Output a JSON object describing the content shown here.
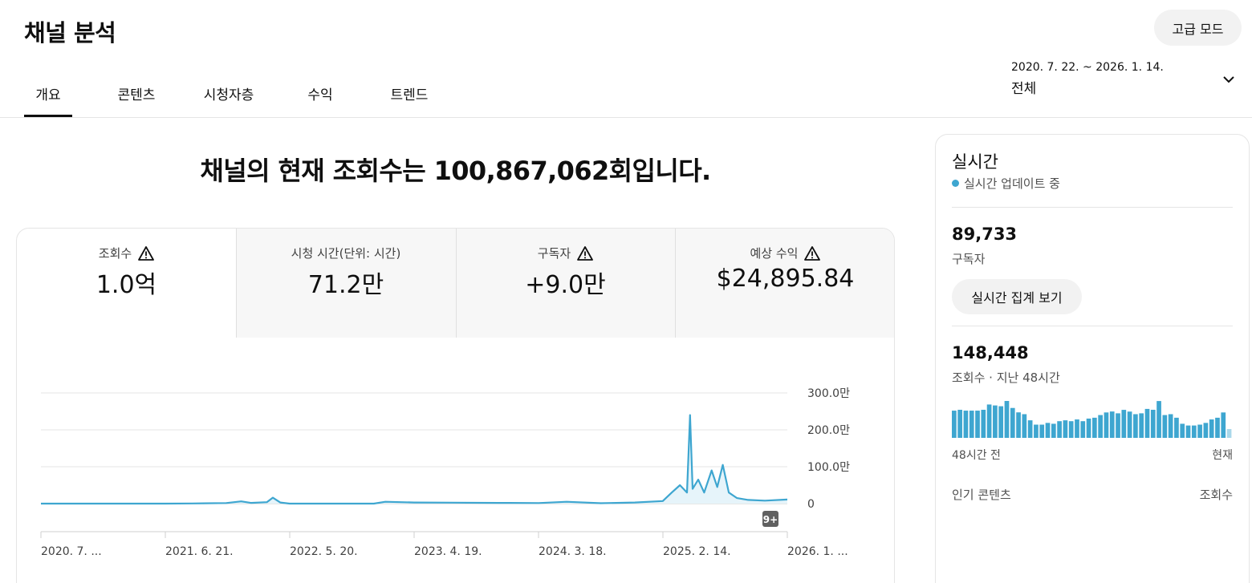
{
  "header": {
    "title": "채널 분석",
    "advanced_mode_label": "고급 모드"
  },
  "tabs": [
    {
      "label": "개요",
      "active": true
    },
    {
      "label": "콘텐츠",
      "active": false
    },
    {
      "label": "시청자층",
      "active": false
    },
    {
      "label": "수익",
      "active": false
    },
    {
      "label": "트렌드",
      "active": false
    }
  ],
  "date_range": {
    "range": "2020. 7. 22. ~ 2026. 1. 14.",
    "period": "전체",
    "icon": "chevron-down-icon"
  },
  "headline": "채널의 현재 조회수는 100,867,062회입니다.",
  "metrics": [
    {
      "label": "조회수",
      "value": "1.0억",
      "warning": true,
      "selected": true
    },
    {
      "label": "시청 시간(단위: 시간)",
      "value": "71.2만",
      "warning": false,
      "selected": false
    },
    {
      "label": "구독자",
      "value": "+9.0만",
      "warning": true,
      "selected": false
    },
    {
      "label": "예상 수익",
      "value": "$24,895.84",
      "warning": true,
      "selected": false
    }
  ],
  "chart_data": {
    "type": "line",
    "y_ticks": [
      "300.0만",
      "200.0만",
      "100.0만",
      "0"
    ],
    "ylim": [
      0,
      3000000
    ],
    "x_ticks": [
      "2020. 7. ...",
      "2021. 6. 21.",
      "2022. 5. 20.",
      "2023. 4. 19.",
      "2024. 3. 18.",
      "2025. 2. 14.",
      "2026. 1. ..."
    ],
    "series": [
      {
        "color": "#3ea6d0",
        "points": [
          [
            "2020-07-22",
            0
          ],
          [
            "2021-06-21",
            0
          ],
          [
            "2021-09-01",
            5000
          ],
          [
            "2021-12-01",
            15000
          ],
          [
            "2022-01-10",
            60000
          ],
          [
            "2022-02-05",
            20000
          ],
          [
            "2022-03-20",
            40000
          ],
          [
            "2022-04-05",
            160000
          ],
          [
            "2022-04-25",
            30000
          ],
          [
            "2022-05-20",
            0
          ],
          [
            "2023-01-01",
            0
          ],
          [
            "2023-02-01",
            50000
          ],
          [
            "2023-04-19",
            30000
          ],
          [
            "2023-08-01",
            25000
          ],
          [
            "2023-12-01",
            20000
          ],
          [
            "2024-03-18",
            15000
          ],
          [
            "2024-06-01",
            50000
          ],
          [
            "2024-09-01",
            10000
          ],
          [
            "2024-12-01",
            30000
          ],
          [
            "2025-02-14",
            70000
          ],
          [
            "2025-03-10",
            300000
          ],
          [
            "2025-04-01",
            500000
          ],
          [
            "2025-04-20",
            300000
          ],
          [
            "2025-04-28",
            2400000
          ],
          [
            "2025-05-05",
            400000
          ],
          [
            "2025-05-20",
            650000
          ],
          [
            "2025-06-05",
            300000
          ],
          [
            "2025-06-25",
            900000
          ],
          [
            "2025-07-10",
            450000
          ],
          [
            "2025-07-25",
            1050000
          ],
          [
            "2025-08-10",
            300000
          ],
          [
            "2025-09-01",
            150000
          ],
          [
            "2025-10-01",
            100000
          ],
          [
            "2025-11-15",
            80000
          ],
          [
            "2026-01-14",
            110000
          ]
        ]
      }
    ],
    "badge": "9+",
    "grid": true
  },
  "realtime": {
    "title": "실시간",
    "status": "실시간 업데이트 중",
    "subscribers_value": "89,733",
    "subscribers_label": "구독자",
    "button_label": "실시간 집계 보기",
    "views_value": "148,448",
    "views_label": "조회수 · 지난 48시간",
    "hourly_views": [
      3460,
      3570,
      3460,
      3460,
      3460,
      3570,
      4240,
      4120,
      4020,
      4690,
      3800,
      3240,
      3010,
      2230,
      1680,
      1680,
      1900,
      1790,
      2120,
      2230,
      2120,
      2340,
      2120,
      2450,
      2560,
      2900,
      3230,
      3350,
      3120,
      3560,
      3340,
      3010,
      3120,
      3680,
      3570,
      4680,
      2900,
      3010,
      2560,
      1790,
      1570,
      1570,
      1680,
      1900,
      2340,
      2560,
      3230,
      1120
    ],
    "axis_start": "48시간 전",
    "axis_end": "현재",
    "top_content_label": "인기 콘텐츠",
    "top_content_metric": "조회수"
  },
  "colors": {
    "accent": "#3ea6d0",
    "light_bar": "#a9d8ea",
    "grid": "#e5e5e5"
  }
}
